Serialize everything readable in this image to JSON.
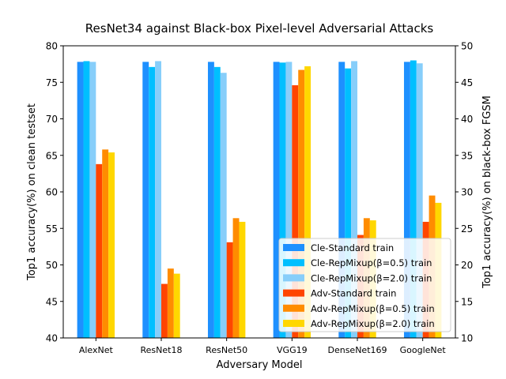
{
  "chart_data": {
    "type": "bar",
    "title": "ResNet34 against Black-box Pixel-level Adversarial Attacks",
    "xlabel": "Adversary Model",
    "ylabel_left": "Top1 accuracy(%) on clean testset",
    "ylabel_right": "Top1 accuracy(%) on black-box FGSM",
    "ylim_left": [
      40,
      80
    ],
    "ylim_right": [
      10,
      50
    ],
    "yticks_left": [
      "40",
      "45",
      "50",
      "55",
      "60",
      "65",
      "70",
      "75",
      "80"
    ],
    "yticks_right": [
      "10",
      "15",
      "20",
      "25",
      "30",
      "35",
      "40",
      "45",
      "50"
    ],
    "categories": [
      "AlexNet",
      "ResNet18",
      "ResNet50",
      "VGG19",
      "DenseNet169",
      "GoogleNet"
    ],
    "legend_position": "lower-right",
    "grid": false,
    "series": [
      {
        "name": "Cle-Standard train",
        "axis": "left",
        "color": "#1e90ff",
        "values": [
          77.8,
          77.8,
          77.8,
          77.8,
          77.8,
          77.8
        ]
      },
      {
        "name": "Cle-RepMixup(β=0.5) train",
        "axis": "left",
        "color": "#00bfff",
        "values": [
          77.9,
          77.1,
          77.1,
          77.7,
          76.9,
          78.0
        ]
      },
      {
        "name": "Cle-RepMixup(β=2.0) train",
        "axis": "left",
        "color": "#87cefa",
        "values": [
          77.8,
          77.9,
          76.3,
          77.8,
          77.9,
          77.6
        ]
      },
      {
        "name": "Adv-Standard train",
        "axis": "right",
        "color": "#ff4500",
        "values": [
          33.8,
          17.4,
          23.1,
          44.6,
          24.1,
          25.9
        ]
      },
      {
        "name": "Adv-RepMixup(β=0.5) train",
        "axis": "right",
        "color": "#ff8c00",
        "values": [
          35.8,
          19.5,
          26.4,
          46.7,
          26.4,
          29.5
        ]
      },
      {
        "name": "Adv-RepMixup(β=2.0) train",
        "axis": "right",
        "color": "#ffd700",
        "values": [
          35.4,
          18.8,
          25.9,
          47.2,
          26.1,
          28.5
        ]
      }
    ]
  }
}
